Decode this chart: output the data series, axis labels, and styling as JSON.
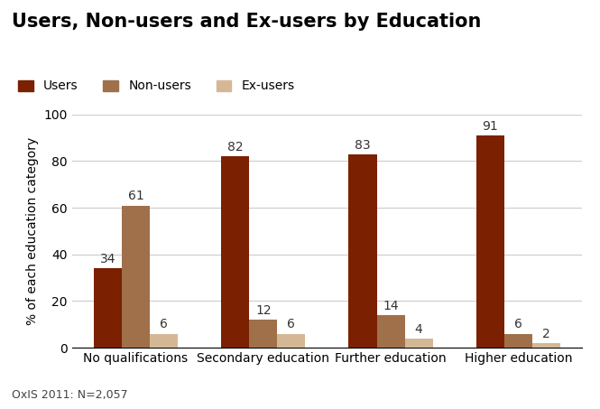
{
  "title": "Users, Non-users and Ex-users by Education",
  "categories": [
    "No qualifications",
    "Secondary education",
    "Further education",
    "Higher education"
  ],
  "series": {
    "Users": [
      34,
      82,
      83,
      91
    ],
    "Non-users": [
      61,
      12,
      14,
      6
    ],
    "Ex-users": [
      6,
      6,
      4,
      2
    ]
  },
  "colors": {
    "Users": "#7B2000",
    "Non-users": "#A0704A",
    "Ex-users": "#D4B896"
  },
  "ylabel": "% of each education category",
  "ylim": [
    0,
    100
  ],
  "yticks": [
    0,
    20,
    40,
    60,
    80,
    100
  ],
  "footnote": "OxIS 2011: N=2,057",
  "legend_labels": [
    "Users",
    "Non-users",
    "Ex-users"
  ],
  "bar_width": 0.22,
  "title_fontsize": 15,
  "label_fontsize": 10,
  "tick_fontsize": 10,
  "footnote_fontsize": 9,
  "annotation_fontsize": 10,
  "background_color": "#FFFFFF"
}
